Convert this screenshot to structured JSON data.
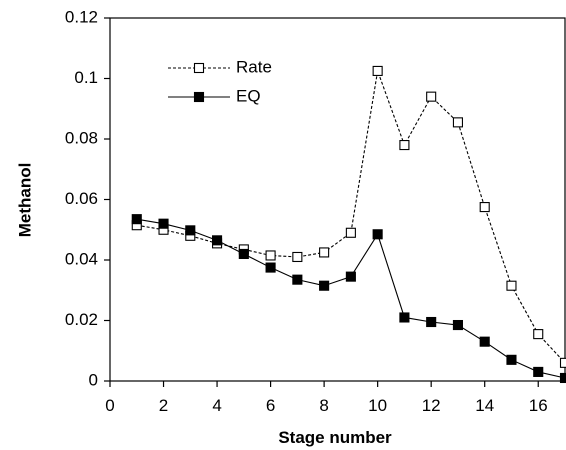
{
  "chart_data": {
    "type": "line",
    "title": "",
    "xlabel": "Stage number",
    "ylabel": "Methanol",
    "xlim": [
      0,
      17
    ],
    "ylim": [
      0,
      0.12
    ],
    "x_ticks": [
      0,
      2,
      4,
      6,
      8,
      10,
      12,
      14,
      16
    ],
    "x_tick_labels": [
      "0",
      "2",
      "4",
      "6",
      "8",
      "10",
      "12",
      "14",
      "16"
    ],
    "y_ticks": [
      0,
      0.02,
      0.04,
      0.06,
      0.08,
      0.1,
      0.12
    ],
    "y_tick_labels": [
      "0",
      "0.02",
      "0.04",
      "0.06",
      "0.08",
      "0.1",
      "0.12"
    ],
    "grid": false,
    "legend": "top-left",
    "series": [
      {
        "name": "Rate",
        "line_style": "dashed",
        "marker": "open-square",
        "color": "#000000",
        "x": [
          1,
          2,
          3,
          4,
          5,
          6,
          7,
          8,
          9,
          10,
          11,
          12,
          13,
          14,
          15,
          16,
          17
        ],
        "y": [
          0.0515,
          0.05,
          0.048,
          0.0455,
          0.0435,
          0.0415,
          0.041,
          0.0425,
          0.049,
          0.1025,
          0.078,
          0.094,
          0.0855,
          0.0575,
          0.0315,
          0.0155,
          0.006
        ]
      },
      {
        "name": "EQ",
        "line_style": "solid",
        "marker": "filled-square",
        "color": "#000000",
        "x": [
          1,
          2,
          3,
          4,
          5,
          6,
          7,
          8,
          9,
          10,
          11,
          12,
          13,
          14,
          15,
          16,
          17
        ],
        "y": [
          0.0535,
          0.052,
          0.0498,
          0.0465,
          0.042,
          0.0375,
          0.0335,
          0.0315,
          0.0345,
          0.0485,
          0.021,
          0.0195,
          0.0185,
          0.013,
          0.007,
          0.003,
          0.001
        ]
      }
    ]
  }
}
